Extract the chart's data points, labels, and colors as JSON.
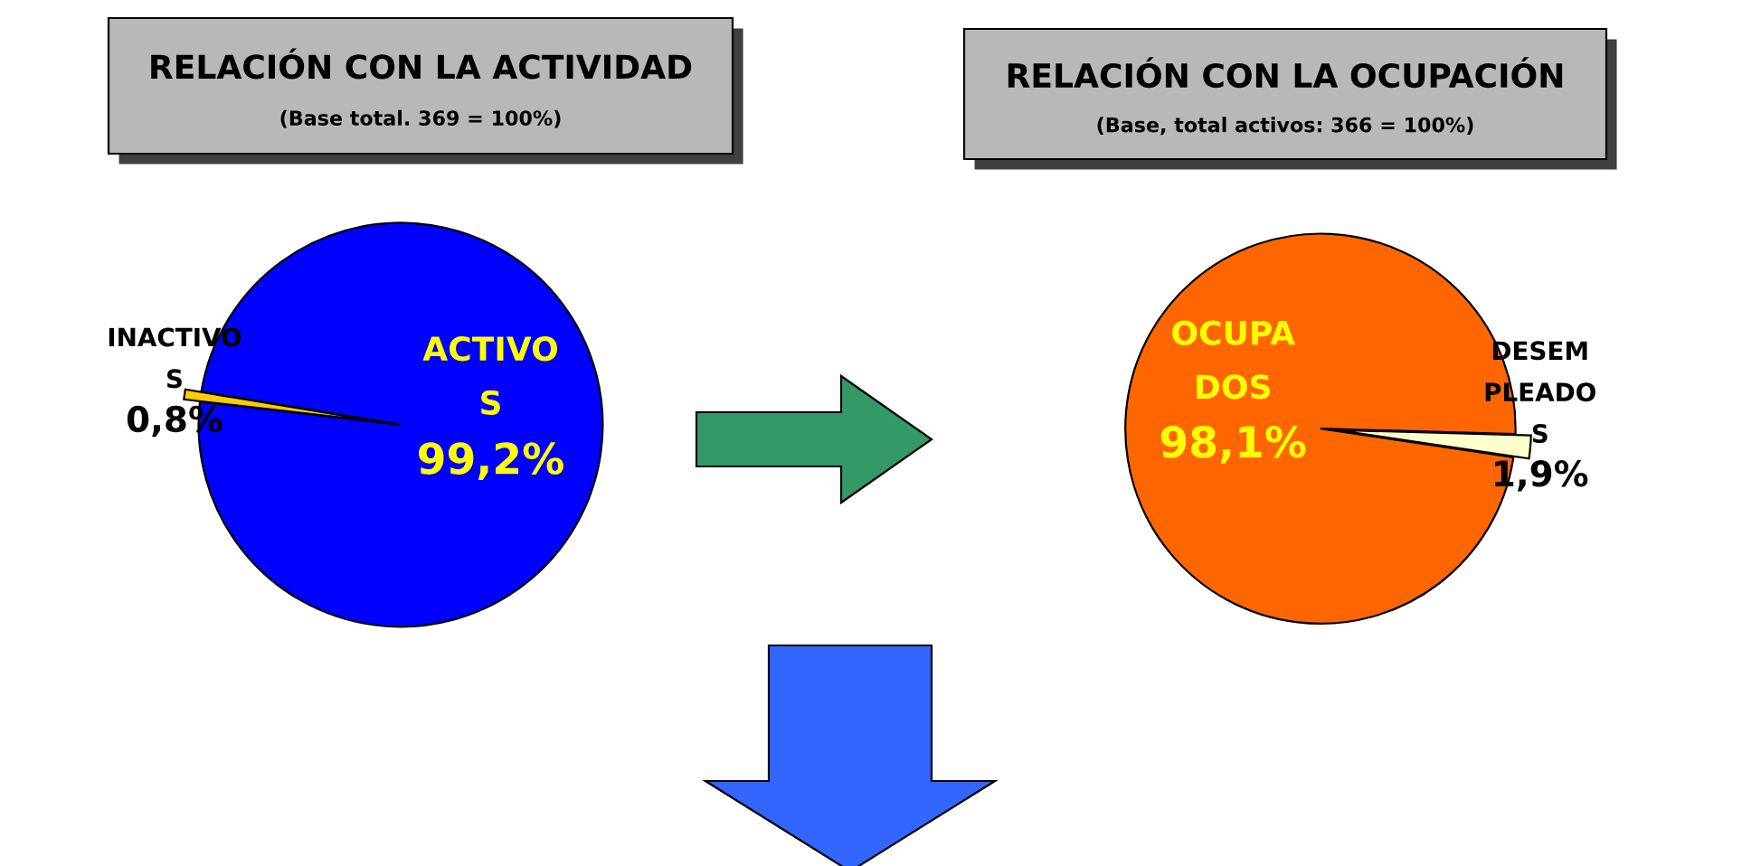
{
  "chart_data": [
    {
      "type": "pie",
      "title": "RELACIÓN CON LA ACTIVIDAD",
      "subtitle": "(Base total. 369 = 100%)",
      "categories": [
        "INACTIVO\nS",
        "ACTIVO\nS"
      ],
      "values": [
        0.8,
        99.2
      ],
      "value_labels": [
        "0,8%",
        "99,2%"
      ],
      "colors": [
        "#ffcc00",
        "#0000ff"
      ]
    },
    {
      "type": "pie",
      "title": "RELACIÓN CON LA OCUPACIÓN",
      "subtitle": "(Base, total activos: 366 = 100%)",
      "categories": [
        "OCUPA\nDOS",
        "DESEM\nPLEADO\nS"
      ],
      "values": [
        98.1,
        1.9
      ],
      "value_labels": [
        "98,1%",
        "1,9%"
      ],
      "colors": [
        "#ff6600",
        "#ffffcc"
      ]
    }
  ]
}
